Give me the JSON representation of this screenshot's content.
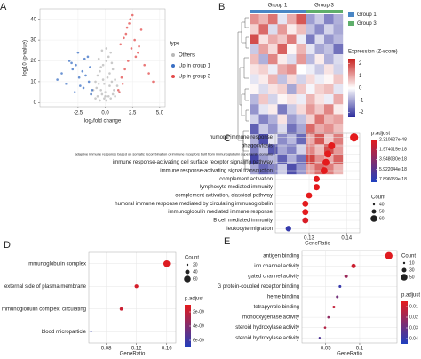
{
  "chart_data": [
    {
      "panel": "A",
      "type": "scatter",
      "xlabel": "log₂fold change",
      "ylabel": "log10 (p-value)",
      "xlim": [
        -6,
        5.5
      ],
      "ylim": [
        -2,
        45
      ],
      "xticks": [
        -2.5,
        {
          "value": 0,
          "label": "0.0"
        },
        2.5,
        {
          "value": 5,
          "label": "5.0"
        }
      ],
      "yticks": [
        0,
        10,
        20,
        30,
        40
      ],
      "legend_title": "type",
      "series": [
        {
          "name": "Others",
          "color": "#b8b8b8",
          "x": [
            -0.9,
            -0.7,
            -0.5,
            -0.3,
            -0.1,
            0.1,
            0.3,
            0.5,
            0.7,
            0.9,
            -0.8,
            -0.6,
            -0.4,
            -0.2,
            0,
            0.2,
            0.4,
            0.6,
            0.8,
            -0.5,
            -0.2,
            0.1,
            0.4,
            -0.9,
            0.9,
            -0.3,
            0.3,
            0,
            -0.7,
            0.7,
            -1.1,
            1.1,
            -0.6,
            0.6,
            -0.1,
            0.1,
            -0.4,
            0.5,
            -1.3,
            1.3
          ],
          "y": [
            2,
            3,
            1,
            4,
            2,
            1,
            3,
            2,
            4,
            3,
            7,
            9,
            6,
            11,
            5,
            12,
            8,
            10,
            6,
            15,
            18,
            20,
            14,
            10,
            11,
            25,
            22,
            3,
            13,
            16,
            6,
            8,
            21,
            19,
            9,
            26,
            17,
            24,
            4,
            5
          ]
        },
        {
          "name": "Up in group 1",
          "color": "#3a6fc4",
          "x": [
            -1.2,
            -1.5,
            -1.8,
            -2.1,
            -2.4,
            -2.7,
            -3.0,
            -3.3,
            -3.6,
            -4.0,
            -4.4,
            -1.4,
            -1.9,
            -2.3,
            -2.8,
            -1.6,
            -2.0,
            -2.5,
            -3.1,
            -1.3
          ],
          "y": [
            6,
            10,
            13,
            15,
            12,
            18,
            16,
            20,
            9,
            14,
            11,
            17,
            21,
            8,
            5,
            22,
            7,
            24,
            19,
            4
          ]
        },
        {
          "name": "Up in group 3",
          "color": "#e34a4a",
          "x": [
            1.2,
            1.5,
            1.8,
            2.1,
            2.4,
            2.7,
            3.0,
            3.3,
            3.6,
            4.0,
            4.4,
            1.4,
            1.9,
            2.3,
            2.8,
            1.6,
            2.0,
            2.5,
            3.1,
            1.3,
            2.2,
            1.7
          ],
          "y": [
            6,
            12,
            16,
            20,
            26,
            30,
            24,
            35,
            18,
            14,
            10,
            28,
            33,
            40,
            22,
            9,
            36,
            42,
            27,
            5,
            38,
            31
          ]
        }
      ]
    },
    {
      "panel": "B",
      "type": "heatmap",
      "legend_title": "Expression (Z-score)",
      "clim": [
        -2.4,
        2.4
      ],
      "cticks": [
        2,
        1,
        0,
        -1,
        -2
      ],
      "colors": {
        "low": "#2b2b9b",
        "mid": "#ffffff",
        "high": "#c8201e"
      },
      "groups": [
        {
          "name": "Group 1",
          "color": "#4a86c5",
          "values": [
            [
              1.2,
              0.8,
              1.5,
              -0.3,
              0.9,
              1.8
            ],
            [
              0.5,
              1.6,
              -0.4,
              1.1,
              0.2,
              0.7
            ],
            [
              1.9,
              0.3,
              0.9,
              0.6,
              1.4,
              -0.2
            ],
            [
              -0.6,
              1.0,
              0.4,
              1.7,
              0.1,
              0.8
            ],
            [
              0.7,
              -0.9,
              1.3,
              0.2,
              -0.4,
              1.1
            ],
            [
              0.3,
              0.5,
              -0.2,
              0.9,
              1.2,
              0.0
            ],
            [
              -0.3,
              0.2,
              0.8,
              -0.7,
              0.4,
              -0.5
            ],
            [
              0.1,
              -0.4,
              0.3,
              0.5,
              -1.0,
              0.6
            ],
            [
              -0.8,
              0.6,
              -0.5,
              0.1,
              0.3,
              -0.2
            ],
            [
              -1.2,
              -0.3,
              0.2,
              -1.5,
              -0.6,
              0.4
            ],
            [
              -0.5,
              -1.4,
              -0.9,
              0.3,
              -1.1,
              -0.7
            ],
            [
              -1.8,
              -0.6,
              -1.2,
              -0.4,
              -1.6,
              -1.0
            ],
            [
              -0.9,
              -2.0,
              -0.3,
              -1.3,
              -0.8,
              -1.7
            ],
            [
              -1.5,
              -0.7,
              -1.9,
              -1.0,
              -1.4,
              -0.5
            ],
            [
              -2.1,
              -1.1,
              -0.8,
              -1.8,
              -0.9,
              -1.6
            ],
            [
              -1.0,
              -1.7,
              -1.4,
              -0.6,
              -2.0,
              -1.2
            ]
          ]
        },
        {
          "name": "Group 3",
          "color": "#5fae6b",
          "values": [
            [
              -1.1,
              -0.6,
              -1.4,
              -0.9
            ],
            [
              -0.7,
              -1.3,
              -0.5,
              -1.0
            ],
            [
              -1.5,
              -0.4,
              -1.2,
              -0.8
            ],
            [
              -0.3,
              -1.0,
              -0.7,
              -1.6
            ],
            [
              -0.8,
              0.2,
              -0.9,
              -0.4
            ],
            [
              -0.2,
              -0.6,
              0.3,
              -0.5
            ],
            [
              0.4,
              -0.2,
              0.1,
              0.6
            ],
            [
              -0.1,
              0.5,
              0.7,
              -0.3
            ],
            [
              0.8,
              0.3,
              -0.2,
              0.9
            ],
            [
              1.1,
              0.6,
              1.3,
              0.2
            ],
            [
              0.5,
              1.5,
              0.8,
              1.0
            ],
            [
              1.6,
              0.9,
              1.2,
              0.7
            ],
            [
              0.9,
              1.8,
              0.6,
              1.4
            ],
            [
              1.3,
              0.7,
              1.9,
              1.1
            ],
            [
              2.0,
              1.2,
              0.9,
              1.7
            ],
            [
              1.0,
              1.6,
              1.4,
              0.8
            ]
          ]
        }
      ]
    },
    {
      "panel": "C",
      "type": "dot",
      "xlabel": "GeneRatio",
      "categories": [
        "humoral immune response",
        "phagocytosis",
        "adaptive immune response based on somatic recombination of immune receptors built from immunoglobulin superfamily domains",
        "immune response-activating cell surface receptor signaling pathway",
        "immune response-activating signal transduction",
        "complement activation",
        "lymphocyte mediated immunity",
        "complement activation, classical pathway",
        "humoral immune response mediated by circulating immunoglobulin",
        "immunoglobulin mediated immune response",
        "B cell mediated immunity",
        "leukocyte migration"
      ],
      "values": [
        0.142,
        0.136,
        0.135,
        0.1345,
        0.134,
        0.132,
        0.132,
        0.13,
        0.129,
        0.129,
        0.129,
        0.1245
      ],
      "sizes": [
        66,
        62,
        61,
        61,
        61,
        58,
        58,
        57,
        57,
        57,
        57,
        55
      ],
      "p_adjust": [
        2.310627e-48,
        1e-21,
        1e-21,
        5e-21,
        5e-21,
        1e-20,
        1e-20,
        2e-20,
        3e-20,
        3e-20,
        5e-19,
        7.5e-18
      ],
      "xlim": [
        0.121,
        0.1435
      ],
      "xticks": [
        0.13,
        0.14
      ],
      "size_title": "Count",
      "size_ticks": [
        40,
        50,
        60
      ],
      "color_title": "p.adjust",
      "clim": [
        0,
        8.5e-18
      ],
      "cticks": [
        2.310627e-48,
        1.974015e-18,
        {
          "value": 3.94803e-18,
          "label": "3.948030e-18"
        },
        5.922044e-18,
        7.896059e-18
      ],
      "colors": {
        "low": "#e41a1c",
        "high": "#1f3fbf"
      }
    },
    {
      "panel": "D",
      "type": "dot",
      "xlabel": "GeneRatio",
      "categories": [
        "immunoglobulin complex",
        "external side of plasma membrane",
        "mmunoglobulin complex, circulating",
        "blood microparticle"
      ],
      "values": [
        0.16,
        0.12,
        0.1,
        0.06
      ],
      "sizes": [
        60,
        35,
        30,
        15
      ],
      "p_adjust": [
        1.2e-09,
        1.5e-09,
        1.8e-09,
        6.5e-09
      ],
      "xlim": [
        0.057,
        0.172
      ],
      "xticks": [
        0.08,
        0.12,
        0.16
      ],
      "size_title": "Count",
      "size_ticks": [
        20,
        40,
        60
      ],
      "color_title": "p.adjust",
      "clim": [
        1e-09,
        7e-09
      ],
      "cticks": [
        {
          "value": 2e-09,
          "label": "2e-09"
        },
        {
          "value": 4e-09,
          "label": "4e-09"
        },
        {
          "value": 6e-09,
          "label": "6e-09"
        }
      ],
      "colors": {
        "low": "#e41a1c",
        "high": "#1f3fbf"
      }
    },
    {
      "panel": "E",
      "type": "dot",
      "xlabel": "GeneRatio",
      "categories": [
        "antigen binding",
        "ion channel activity",
        "gated channel activity",
        "G protein-coupled receptor binding",
        "heme binding",
        "tetrapyrrole binding",
        "monooxygenase activity",
        "steroid hydroxylase activity",
        "steroid hydroxylase activity"
      ],
      "values": [
        0.143,
        0.091,
        0.08,
        0.071,
        0.067,
        0.062,
        0.054,
        0.049,
        0.041
      ],
      "sizes": [
        55,
        30,
        22,
        15,
        15,
        15,
        12,
        12,
        10
      ],
      "p_adjust": [
        0.006,
        0.01,
        0.02,
        0.04,
        0.028,
        0.012,
        0.022,
        0.015,
        0.035
      ],
      "xlim": [
        0.015,
        0.155
      ],
      "xticks": [
        0.05,
        0.1
      ],
      "size_title": "Count",
      "size_ticks": [
        10,
        30,
        50
      ],
      "color_title": "p.adjust",
      "clim": [
        0.005,
        0.045
      ],
      "cticks": [
        0.01,
        0.02,
        0.03,
        0.04
      ],
      "colors": {
        "low": "#e41a1c",
        "high": "#1f3fbf"
      }
    }
  ]
}
